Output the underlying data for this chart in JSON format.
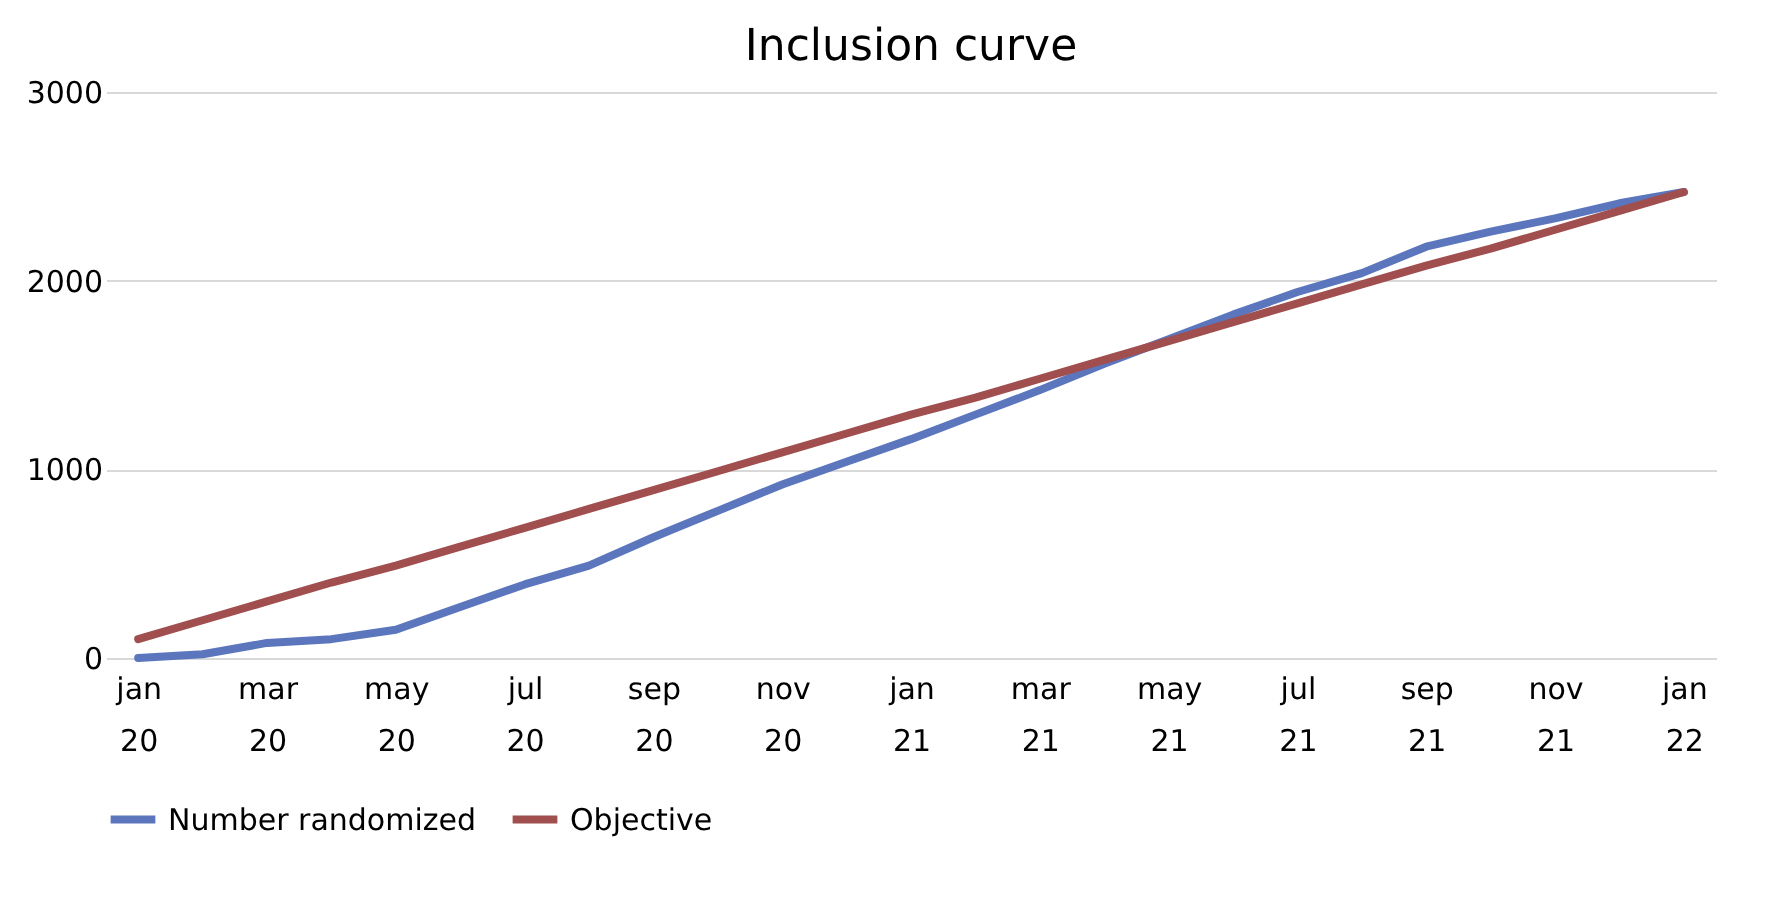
{
  "chart_data": {
    "type": "line",
    "title": "Inclusion curve",
    "categories": [
      "jan 20",
      null,
      "mar 20",
      null,
      "may 20",
      null,
      "jul 20",
      null,
      "sep 20",
      null,
      "nov 20",
      null,
      "jan 21",
      null,
      "mar 21",
      null,
      "may 21",
      null,
      "jul 21",
      null,
      "sep 21",
      null,
      "nov 21",
      null,
      "jan 22"
    ],
    "series": [
      {
        "name": "Number randomized",
        "color": "#5b76bd",
        "values": [
          0,
          20,
          80,
          100,
          150,
          270,
          390,
          490,
          640,
          780,
          920,
          1040,
          1160,
          1290,
          1420,
          1560,
          1690,
          1820,
          1940,
          2040,
          2180,
          2260,
          2330,
          2410,
          2470
        ]
      },
      {
        "name": "Objective",
        "color": "#a04e4e",
        "values": [
          100,
          200,
          300,
          400,
          490,
          590,
          690,
          790,
          890,
          990,
          1090,
          1190,
          1290,
          1380,
          1480,
          1580,
          1680,
          1780,
          1880,
          1980,
          2080,
          2170,
          2270,
          2370,
          2470
        ]
      }
    ],
    "ylim": [
      0,
      3000
    ],
    "yticks": [
      0,
      1000,
      2000,
      3000
    ],
    "grid": "y",
    "legend": "bottom",
    "marker": "none",
    "line_style": "solid"
  }
}
